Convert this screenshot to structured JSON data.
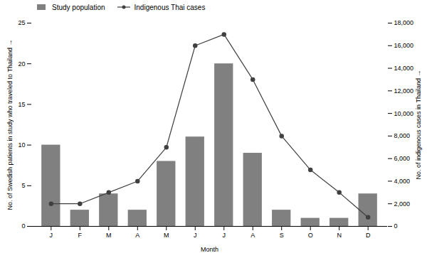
{
  "chart_data": {
    "type": "bar",
    "categories": [
      "J",
      "F",
      "M",
      "A",
      "M",
      "J",
      "J",
      "A",
      "S",
      "O",
      "N",
      "D"
    ],
    "xlabel": "Month",
    "ylabel": "No. of Swedish patients in study who traveled to Thailand",
    "y2label": "No. of indigenous cases in Thailand",
    "ylim": [
      0,
      25
    ],
    "yticks": [
      0,
      5,
      10,
      15,
      20,
      25
    ],
    "y2lim": [
      0,
      18000
    ],
    "y2ticks": [
      0,
      {
        "value": 2000,
        "label": "2,000"
      },
      {
        "value": 4000,
        "label": "4,000"
      },
      {
        "value": 6000,
        "label": "6,000"
      },
      {
        "value": 8000,
        "label": "8,000"
      },
      {
        "value": 10000,
        "label": "10,000"
      },
      {
        "value": 12000,
        "label": "12,000"
      },
      {
        "value": 14000,
        "label": "14,000"
      },
      {
        "value": 16000,
        "label": "16,000"
      },
      {
        "value": 18000,
        "label": "18,000"
      }
    ],
    "grid": false,
    "legend": "upper left",
    "series": [
      {
        "name": "Study population",
        "type": "bar",
        "color": "#808080",
        "values": [
          10,
          2,
          4,
          2,
          8,
          11,
          20,
          9,
          2,
          1,
          1,
          4
        ]
      },
      {
        "name": "Indigenous Thai cases",
        "type": "line",
        "axis": "y2",
        "color": "#404040",
        "marker": "circle",
        "values": [
          2000,
          2000,
          3000,
          4000,
          7000,
          16000,
          17000,
          13000,
          8000,
          5000,
          3000,
          800
        ]
      }
    ]
  }
}
